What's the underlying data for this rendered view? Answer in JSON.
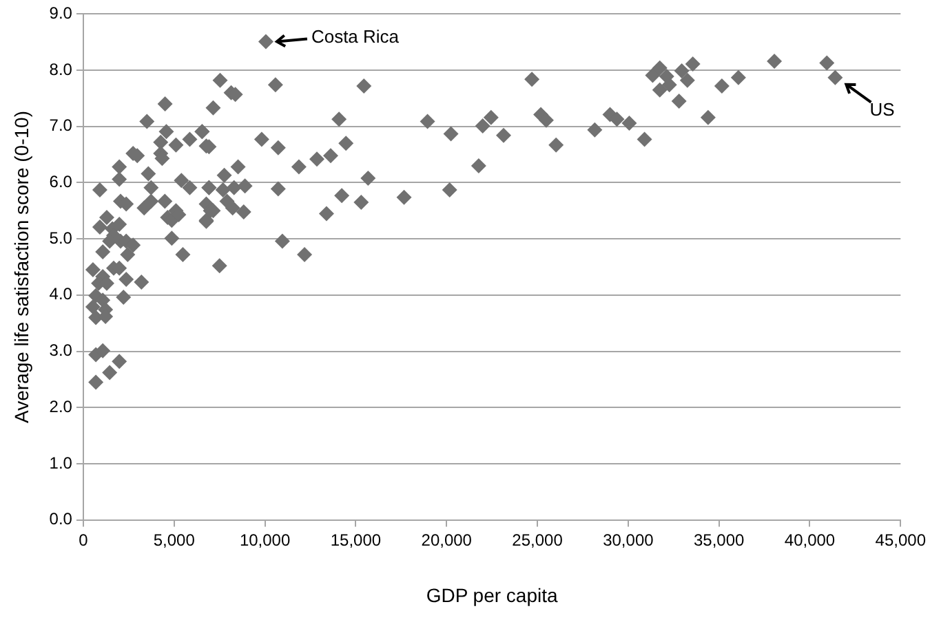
{
  "chart_data": {
    "type": "scatter",
    "xlabel": "GDP per capita",
    "ylabel": "Average life satisfaction score (0-10)",
    "marker": "diamond",
    "grid": "y",
    "legend": false,
    "xlim": [
      0,
      45000
    ],
    "xticks": [
      0,
      {
        "value": 5000,
        "label": "5,000"
      },
      {
        "value": 10000,
        "label": "10,000"
      },
      {
        "value": 15000,
        "label": "15,000"
      },
      {
        "value": 20000,
        "label": "20,000"
      },
      {
        "value": 25000,
        "label": "25,000"
      },
      {
        "value": 30000,
        "label": "30,000"
      },
      {
        "value": 35000,
        "label": "35,000"
      },
      {
        "value": 40000,
        "label": "40,000"
      },
      {
        "value": 45000,
        "label": "45,000"
      }
    ],
    "ylim": [
      0,
      9
    ],
    "yticks": [
      {
        "value": 0,
        "label": "0.0"
      },
      {
        "value": 1,
        "label": "1.0"
      },
      {
        "value": 2,
        "label": "2.0"
      },
      {
        "value": 3,
        "label": "3.0"
      },
      {
        "value": 4,
        "label": "4.0"
      },
      {
        "value": 5,
        "label": "5.0"
      },
      {
        "value": 6,
        "label": "6.0"
      },
      {
        "value": 7,
        "label": "7.0"
      },
      {
        "value": 8,
        "label": "8.0"
      },
      {
        "value": 9,
        "label": "9.0"
      }
    ],
    "annotations": [
      {
        "text": "Costa Rica",
        "x": 10050,
        "y": 8.51
      },
      {
        "text": "US",
        "x": 41400,
        "y": 7.87
      }
    ],
    "series": [
      {
        "color": "#717171",
        "x": [
          3500,
          4570,
          4260,
          5100,
          5860,
          6540,
          6770,
          2740,
          2970,
          4260,
          4340,
          1980,
          1980,
          3580,
          910,
          3730,
          5400,
          5860,
          6920,
          2050,
          2360,
          3350,
          3730,
          4490,
          5100,
          4640,
          4870,
          5250,
          6770,
          7000,
          6770,
          1290,
          910,
          1600,
          1980,
          1670,
          1450,
          2050,
          2360,
          2740,
          2440,
          1070,
          4870,
          5480,
          7500,
          530,
          1070,
          1670,
          1980,
          2360,
          3200,
          840,
          1290,
          690,
          1070,
          530,
          1220,
          2210,
          690,
          1220,
          690,
          1070,
          1980,
          1450,
          690,
          4500,
          10050,
          7530,
          8140,
          8370,
          10580,
          15450,
          7150,
          6540,
          6920,
          9820,
          10730,
          14080,
          14460,
          11870,
          12860,
          13620,
          7760,
          8520,
          15680,
          6920,
          7690,
          8300,
          8900,
          10730,
          7150,
          7910,
          8220,
          8830,
          6770,
          14230,
          15300,
          13390,
          10960,
          12180,
          17660,
          18950,
          20240,
          21990,
          22450,
          23140,
          21770,
          20170,
          24700,
          25190,
          25490,
          26030,
          28160,
          29000,
          29380,
          30060,
          30900,
          31350,
          31740,
          32120,
          31740,
          32270,
          32950,
          33260,
          33560,
          32800,
          34400,
          35160,
          36070,
          38050,
          40940,
          41400
        ],
        "values": [
          7.09,
          6.91,
          6.72,
          6.67,
          6.77,
          6.91,
          6.65,
          6.52,
          6.48,
          6.52,
          6.43,
          6.28,
          6.06,
          6.16,
          5.87,
          5.91,
          6.04,
          5.91,
          5.91,
          5.67,
          5.62,
          5.55,
          5.67,
          5.67,
          5.5,
          5.38,
          5.33,
          5.43,
          5.62,
          5.5,
          5.33,
          5.38,
          5.21,
          5.18,
          5.26,
          5.06,
          4.96,
          4.96,
          4.96,
          4.89,
          4.72,
          4.77,
          5.01,
          4.72,
          4.52,
          4.45,
          4.33,
          4.48,
          4.48,
          4.28,
          4.23,
          4.21,
          4.21,
          3.99,
          3.91,
          3.79,
          3.74,
          3.96,
          3.6,
          3.62,
          2.94,
          3.01,
          2.82,
          2.62,
          2.45,
          7.4,
          8.51,
          7.82,
          7.6,
          7.57,
          7.74,
          7.72,
          7.33,
          6.91,
          6.64,
          6.77,
          6.62,
          7.13,
          6.7,
          6.28,
          6.42,
          6.48,
          6.13,
          6.28,
          6.08,
          5.91,
          5.87,
          5.91,
          5.94,
          5.89,
          5.5,
          5.67,
          5.55,
          5.48,
          5.31,
          5.77,
          5.65,
          5.45,
          4.96,
          4.72,
          5.74,
          7.09,
          6.87,
          7.01,
          7.16,
          6.84,
          6.3,
          5.87,
          7.84,
          7.21,
          7.11,
          6.67,
          6.94,
          7.21,
          7.13,
          7.06,
          6.77,
          7.91,
          8.04,
          7.89,
          7.65,
          7.74,
          7.99,
          7.82,
          8.11,
          7.45,
          7.16,
          7.72,
          7.87,
          8.16,
          8.13,
          7.87
        ]
      }
    ]
  }
}
